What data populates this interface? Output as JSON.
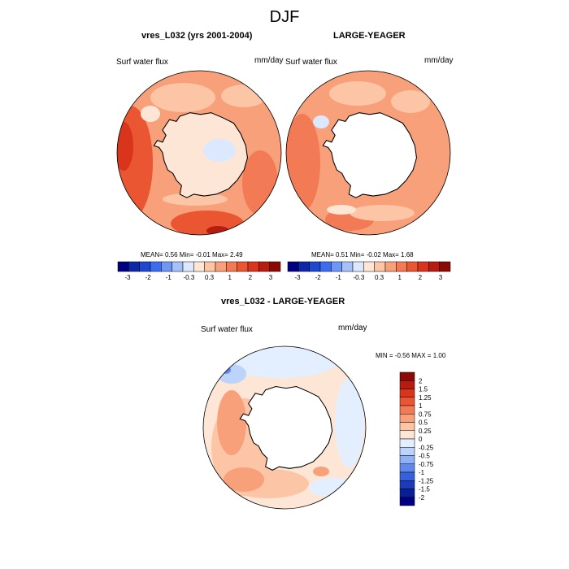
{
  "figure": {
    "season_title": "DJF",
    "panels": [
      {
        "title": "vres_L032 (yrs 2001-2004)",
        "variable": "Surf water flux",
        "units": "mm/day",
        "stats_text": "MEAN=   0.56  Min=  -0.01  Max=   2.49"
      },
      {
        "title": "LARGE-YEAGER",
        "variable": "Surf water flux",
        "units": "mm/day",
        "stats_text": "MEAN=   0.51  Min=  -0.02  Max=   1.68"
      },
      {
        "title": "vres_L032 - LARGE-YEAGER",
        "variable": "Surf water flux",
        "units": "mm/day",
        "stats_text": "MIN =  -0.56 MAX =   1.00"
      }
    ],
    "colorbar_horizontal": {
      "labels": [
        "-3",
        "-2",
        "-1",
        "-0.3",
        "0.3",
        "1",
        "2",
        "3"
      ],
      "colors": [
        "#000080",
        "#0d27a6",
        "#1f48d1",
        "#3c6cf0",
        "#6f95f5",
        "#a6c1fa",
        "#dbe8fd",
        "#fde6d6",
        "#fbc5a6",
        "#f7a07a",
        "#f27a55",
        "#ea5532",
        "#d9341c",
        "#b71c10",
        "#8b0a05"
      ]
    },
    "colorbar_vertical": {
      "labels": [
        "2",
        "1.5",
        "1.25",
        "1",
        "0.75",
        "0.5",
        "0.25",
        "0",
        "-0.25",
        "-0.5",
        "-0.75",
        "-1",
        "-1.25",
        "-1.5",
        "-2"
      ],
      "colors": [
        "#8b0a05",
        "#b71c10",
        "#d9341c",
        "#ea5532",
        "#f27a55",
        "#f7a07a",
        "#fbc5a6",
        "#fde6d6",
        "#e3efff",
        "#bcd3fb",
        "#8fb0f5",
        "#5f88ed",
        "#3560de",
        "#1c3bb8",
        "#0a1f96",
        "#000080"
      ]
    }
  }
}
